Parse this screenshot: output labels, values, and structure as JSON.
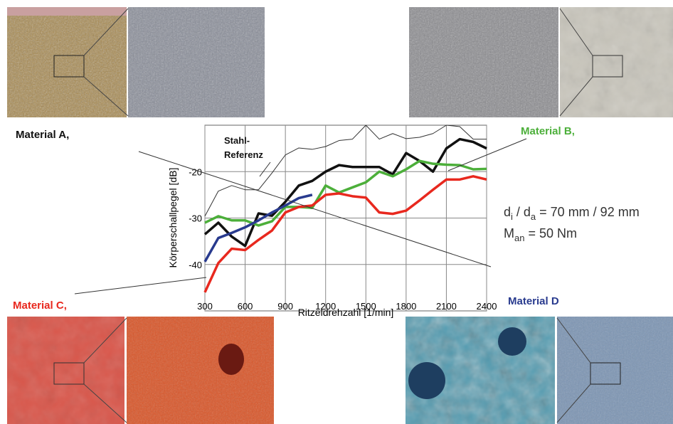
{
  "chart_data": {
    "type": "line",
    "xlabel": "Ritzeldrehzahl [1/min]",
    "ylabel": "Körperschallpegel [dB]",
    "x": [
      300,
      400,
      500,
      600,
      700,
      800,
      900,
      1000,
      1100,
      1200,
      1300,
      1400,
      1500,
      1600,
      1700,
      1800,
      1900,
      2000,
      2100,
      2200,
      2300,
      2400
    ],
    "xlim": [
      300,
      2400
    ],
    "xticks": [
      300,
      600,
      900,
      1200,
      1500,
      1800,
      2100,
      2400
    ],
    "ylim": [
      -50,
      -10
    ],
    "yticks": [
      -20,
      -30,
      -40
    ],
    "grid": true,
    "series": [
      {
        "name": "Stahl-\nReferenz",
        "color": "#333333",
        "line_width": 1,
        "values": [
          -29.6,
          -24.2,
          -23,
          -23.9,
          -23.9,
          -20.3,
          -16.4,
          -14.9,
          -15.2,
          -14.6,
          -13.3,
          -13,
          -10,
          -13,
          -11.8,
          -12.9,
          -12.6,
          -11.8,
          -10,
          -10.3,
          -13,
          -13
        ]
      },
      {
        "name": "Material A,",
        "color": "#111111",
        "line_width": 3.5,
        "values": [
          -33.5,
          -31,
          -34,
          -36,
          -29,
          -29.5,
          -26.5,
          -23,
          -22,
          -20,
          -18.6,
          -19,
          -19,
          -19,
          -20.6,
          -16,
          -17.7,
          -20,
          -15,
          -13,
          -13.6,
          -15
        ]
      },
      {
        "name": "Material B,",
        "color": "#4caf3a",
        "line_width": 3.5,
        "values": [
          -31,
          -29.6,
          -30.5,
          -30.5,
          -31.6,
          -30.7,
          -27.6,
          -27.6,
          -27.8,
          -23,
          -24.5,
          -23.4,
          -22.3,
          -20,
          -21,
          -19.5,
          -17.7,
          -18.3,
          -18.5,
          -18.6,
          -19.5,
          -19.4
        ]
      },
      {
        "name": "Material C,",
        "color": "#e8281e",
        "line_width": 3.5,
        "values": [
          -46,
          -39.7,
          -36.6,
          -36.9,
          -34.7,
          -32.7,
          -28.8,
          -27.6,
          -27.3,
          -25,
          -24.7,
          -25.3,
          -25.6,
          -28.8,
          -29.1,
          -28.4,
          -26.2,
          -23.9,
          -21.7,
          -21.7,
          -21,
          -21.7
        ]
      },
      {
        "name": "Material D",
        "color": "#283a8e",
        "line_width": 3.5,
        "values": [
          -39.4,
          -34.3,
          -33.2,
          -32,
          -30.5,
          -28.8,
          -27.3,
          -25.7,
          -25,
          null,
          null,
          null,
          null,
          null,
          null,
          null,
          null,
          null,
          null,
          null,
          null,
          null
        ]
      }
    ],
    "annotations": [
      [
        "d",
        "i",
        " / d",
        "a",
        " = 70 mm / 92 mm"
      ],
      [
        "M",
        "an",
        " = 50 Nm"
      ]
    ]
  }
}
